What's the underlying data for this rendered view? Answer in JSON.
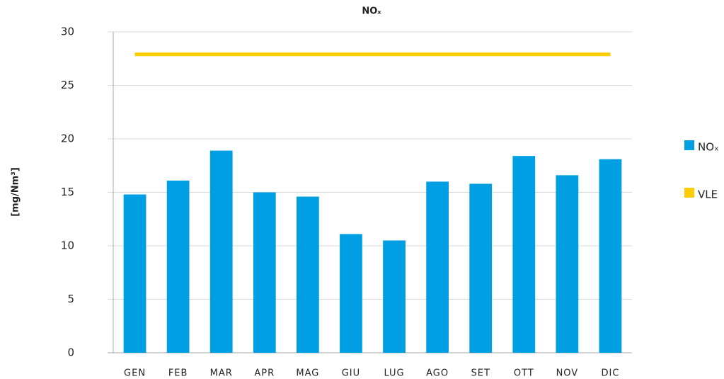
{
  "chart_data": {
    "type": "bar",
    "title": "NOₓ",
    "y_label": "[mg/Nm³]",
    "categories": [
      "GEN",
      "FEB",
      "MAR",
      "APR",
      "MAG",
      "GIU",
      "LUG",
      "AGO",
      "SET",
      "OTT",
      "NOV",
      "DIC"
    ],
    "series": [
      {
        "name": "NOₓ",
        "type": "bar",
        "color": "#009fe3",
        "values": [
          14.8,
          16.1,
          18.9,
          15.0,
          14.6,
          11.1,
          10.5,
          16.0,
          15.8,
          18.4,
          16.6,
          18.1
        ]
      },
      {
        "name": "VLE",
        "type": "line",
        "color": "#ffcc00",
        "values": [
          27.9,
          27.9,
          27.9,
          27.9,
          27.9,
          27.9,
          27.9,
          27.9,
          27.9,
          27.9,
          27.9,
          27.9
        ]
      }
    ],
    "ylim": [
      0,
      30
    ],
    "yticks": [
      0,
      5,
      10,
      15,
      20,
      25,
      30
    ],
    "grid": true,
    "legend": "right"
  }
}
